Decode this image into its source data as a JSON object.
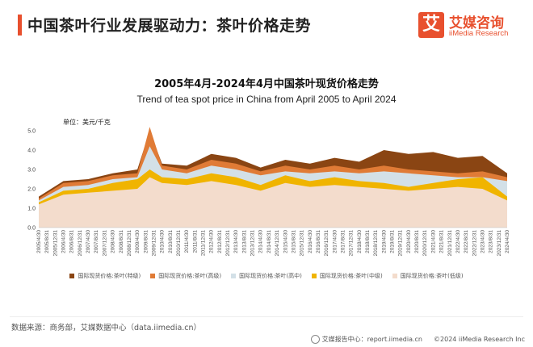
{
  "header": {
    "page_title": "中国茶叶行业发展驱动力：茶叶价格走势",
    "brand_mark": "艾",
    "brand_name": "艾媒咨询",
    "brand_sub": "iiMedia Research"
  },
  "footer": {
    "source": "数据来源：商务部，艾媒数据中心（data.iimedia.cn）",
    "report_center": "艾媒报告中心：report.iimedia.cn",
    "copyright": "©2024  iiMedia Research  Inc"
  },
  "colors": {
    "accent": "#e8502e",
    "special": "#8a4513",
    "high": "#e07b36",
    "mid_high": "#d3e0e7",
    "mid": "#f0b400",
    "low": "#f3dccc"
  },
  "chart_data": {
    "type": "area",
    "title": "2005年4月-2024年4月中国茶叶现货价格走势",
    "subtitle": "Trend of tea spot price in China from April 2005 to April 2024",
    "unit": "单位：美元/千克",
    "ylim": [
      0,
      5.5
    ],
    "yticks": [
      "0.0",
      "1.0",
      "2.0",
      "3.0",
      "4.0",
      "5.0"
    ],
    "xticks": [
      "2005/4/30",
      "2005/8/31",
      "2005/12/31",
      "2006/4/30",
      "2006/8/31",
      "2006/12/31",
      "2007/4/30",
      "2007/8/31",
      "2007/12/31",
      "2008/4/30",
      "2008/8/31",
      "2008/12/31",
      "2009/4/30",
      "2009/8/31",
      "2009/12/31",
      "2010/4/30",
      "2010/8/31",
      "2010/12/31",
      "2011/4/30",
      "2011/8/31",
      "2011/12/31",
      "2012/4/30",
      "2012/8/31",
      "2012/12/31",
      "2013/4/30",
      "2013/8/31",
      "2013/12/31",
      "2014/4/30",
      "2014/8/31",
      "2014/12/31",
      "2015/4/30",
      "2015/8/31",
      "2015/12/31",
      "2016/4/30",
      "2016/8/31",
      "2016/12/31",
      "2017/4/30",
      "2017/8/31",
      "2017/12/31",
      "2018/4/30",
      "2018/8/31",
      "2018/12/31",
      "2019/4/30",
      "2019/8/31",
      "2019/12/31",
      "2020/4/30",
      "2020/8/31",
      "2020/12/31",
      "2021/4/30",
      "2021/8/31",
      "2021/12/31",
      "2022/4/30",
      "2022/8/31",
      "2022/12/31",
      "2023/4/30",
      "2023/8/31",
      "2023/12/31",
      "2024/4/30"
    ],
    "x": [
      "2005/4",
      "2006/4",
      "2007/4",
      "2008/4",
      "2009/4",
      "2009/10",
      "2010/4",
      "2011/4",
      "2012/4",
      "2013/4",
      "2014/4",
      "2015/4",
      "2016/4",
      "2017/4",
      "2018/4",
      "2019/4",
      "2020/4",
      "2021/4",
      "2022/4",
      "2023/4",
      "2024/4"
    ],
    "series": [
      {
        "name": "国际现货价格:茶叶(特级)",
        "color": "#8a4513",
        "values": [
          1.6,
          2.4,
          2.5,
          2.8,
          3.0,
          5.0,
          3.3,
          3.2,
          3.8,
          3.6,
          3.1,
          3.5,
          3.3,
          3.6,
          3.4,
          4.0,
          3.8,
          3.9,
          3.6,
          3.7,
          2.8
        ]
      },
      {
        "name": "国际现货价格:茶叶(高级)",
        "color": "#e07b36",
        "values": [
          1.5,
          2.3,
          2.4,
          2.7,
          2.8,
          5.2,
          3.2,
          3.0,
          3.5,
          3.3,
          2.9,
          3.2,
          3.0,
          3.2,
          3.0,
          3.2,
          3.0,
          2.9,
          2.8,
          2.9,
          2.6
        ]
      },
      {
        "name": "国际现货价格:茶叶(高中)",
        "color": "#d3e0e7",
        "values": [
          1.4,
          2.1,
          2.2,
          2.5,
          2.6,
          4.2,
          3.0,
          2.8,
          3.2,
          3.0,
          2.7,
          2.9,
          2.8,
          2.9,
          2.8,
          2.9,
          2.8,
          2.7,
          2.6,
          2.6,
          2.4
        ]
      },
      {
        "name": "国际现货价格:茶叶(中级)",
        "color": "#f0b400",
        "values": [
          1.3,
          1.9,
          2.0,
          2.3,
          2.5,
          3.0,
          2.6,
          2.5,
          2.8,
          2.6,
          2.2,
          2.7,
          2.4,
          2.6,
          2.4,
          2.3,
          2.1,
          2.3,
          2.5,
          2.6,
          1.6
        ]
      },
      {
        "name": "国际现货价格:茶叶(低级)",
        "color": "#f3dccc",
        "values": [
          1.2,
          1.7,
          1.8,
          1.9,
          2.0,
          2.6,
          2.3,
          2.2,
          2.4,
          2.2,
          1.9,
          2.3,
          2.1,
          2.2,
          2.1,
          2.0,
          1.9,
          2.0,
          2.1,
          2.0,
          1.4
        ]
      }
    ],
    "legend_position": "bottom",
    "grid": false
  }
}
